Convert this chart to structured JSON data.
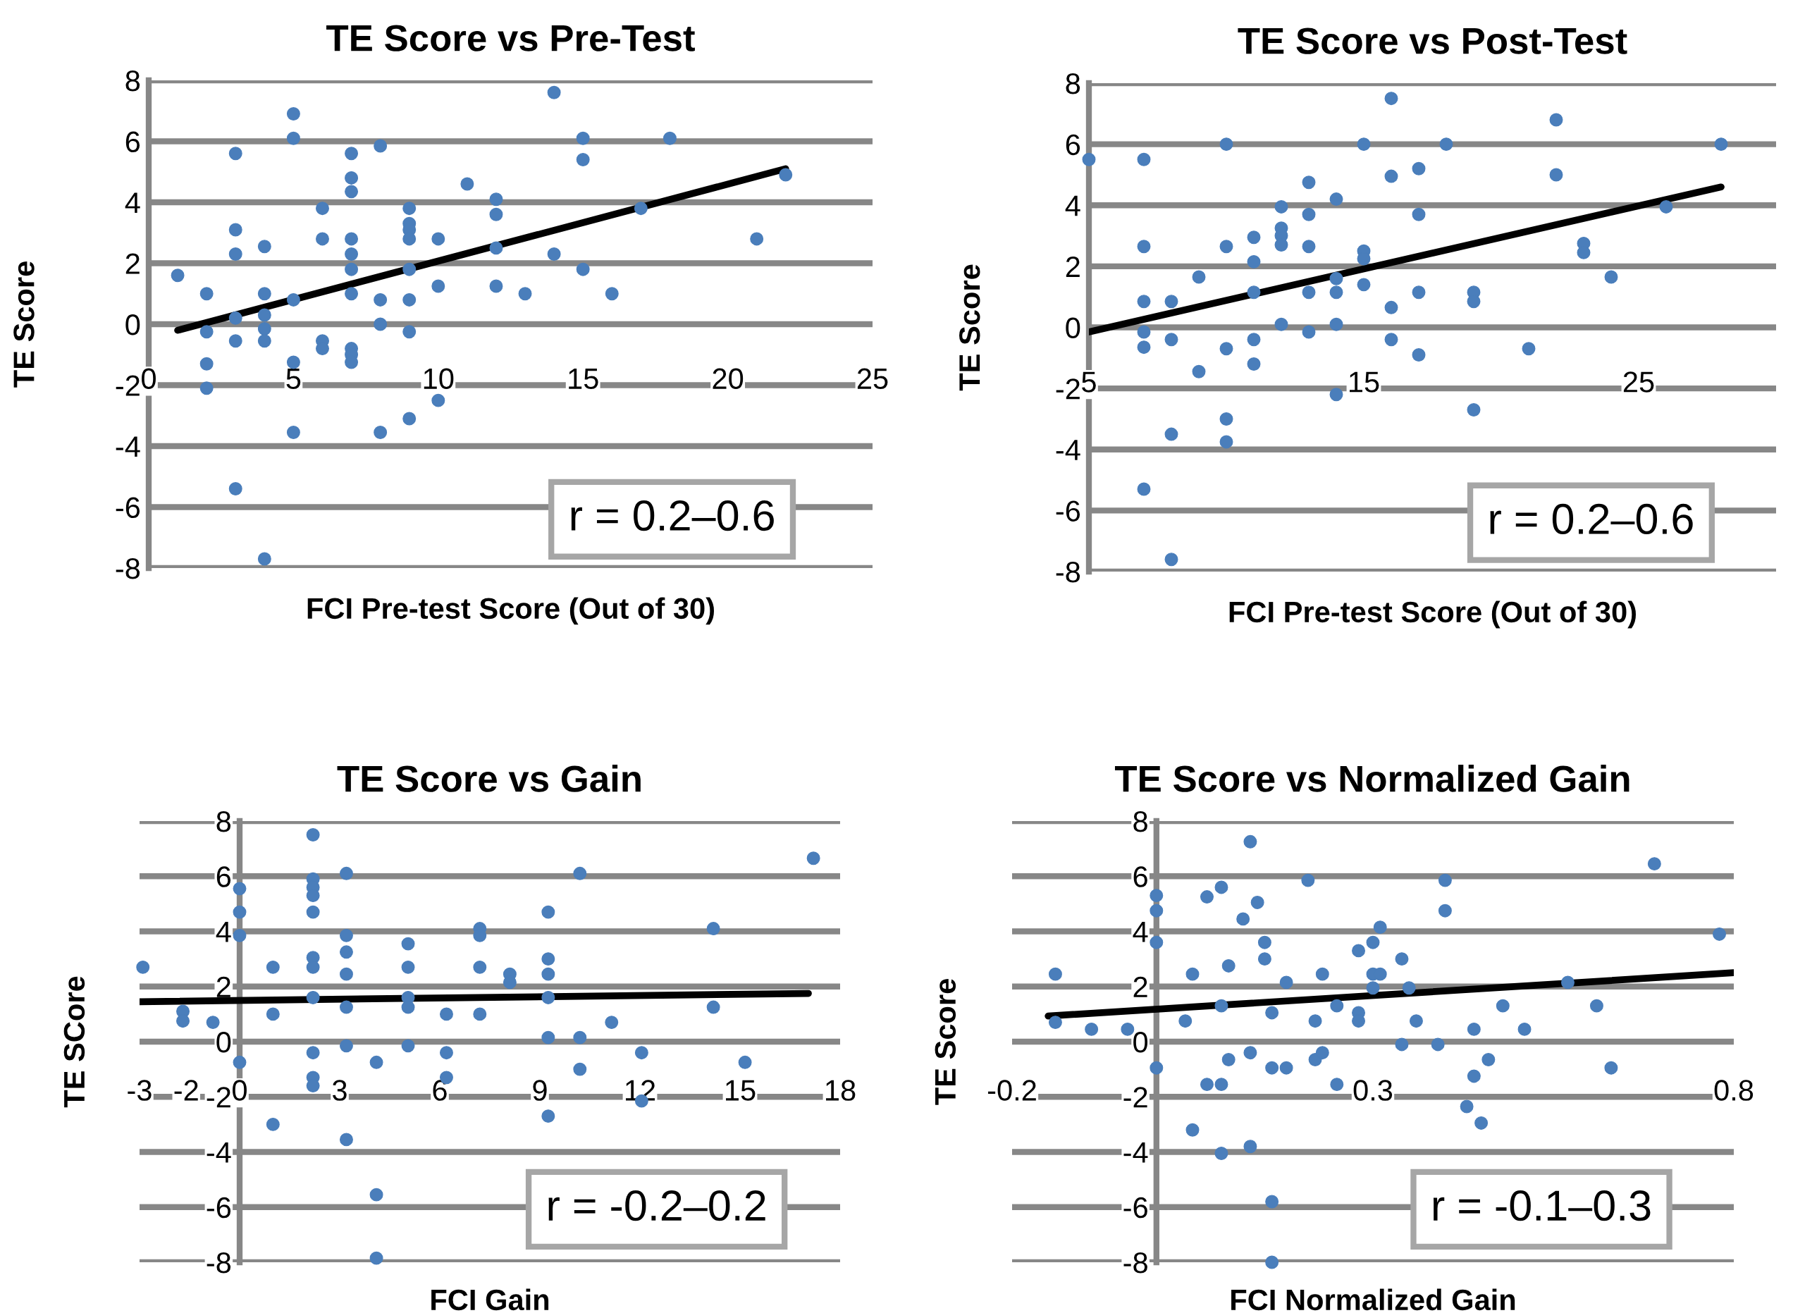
{
  "chart_data": [
    {
      "type": "scatter",
      "title": "TE Score vs Pre-Test",
      "xlabel": "FCI Pre-test Score (Out of 30)",
      "ylabel": "TE Score",
      "xlim": [
        0,
        25
      ],
      "xticks": [
        0,
        5,
        10,
        15,
        20,
        25
      ],
      "ylim": [
        -8,
        8
      ],
      "yticks": [
        -8,
        -6,
        -4,
        -2,
        0,
        2,
        4,
        6,
        8
      ],
      "grid": "y",
      "annotations": [
        "r = 0.2–0.6"
      ],
      "series": [
        {
          "type": "scatter",
          "color": "#4a7ebb",
          "x": [
            14,
            5,
            5,
            3,
            7,
            8,
            15,
            18,
            15,
            7,
            7,
            11,
            12,
            12,
            22,
            17,
            6,
            9,
            9,
            9,
            9,
            3,
            3,
            4,
            6,
            7,
            7,
            7,
            10,
            12,
            21,
            14,
            15,
            9,
            1,
            2,
            4,
            7,
            10,
            12,
            13,
            16,
            5,
            8,
            9,
            3,
            4,
            8,
            2,
            4,
            4,
            3,
            9,
            6,
            6,
            7,
            7,
            7,
            5,
            2,
            2,
            10,
            9,
            5,
            8,
            3,
            4
          ],
          "values": [
            7.6,
            6.9,
            6.1,
            5.6,
            5.6,
            5.85,
            6.1,
            6.1,
            5.4,
            4.8,
            4.35,
            4.6,
            4.1,
            3.6,
            4.9,
            3.8,
            3.8,
            3.8,
            3.3,
            3.1,
            2.8,
            3.1,
            2.3,
            2.55,
            2.8,
            2.8,
            2.3,
            1.8,
            2.8,
            2.5,
            2.8,
            2.3,
            1.8,
            1.8,
            1.6,
            1.0,
            1.0,
            1.0,
            1.25,
            1.25,
            1.0,
            1.0,
            0.8,
            0.8,
            0.8,
            0.2,
            0.3,
            0,
            -0.25,
            -0.15,
            -0.55,
            -0.55,
            -0.25,
            -0.55,
            -0.8,
            -0.8,
            -1.0,
            -1.25,
            -1.25,
            -1.3,
            -2.1,
            -2.5,
            -3.1,
            -3.55,
            -3.55,
            -5.4,
            -7.7
          ]
        },
        {
          "type": "line",
          "color": "#000000",
          "x": [
            1,
            22
          ],
          "values": [
            -0.2,
            5.1
          ]
        }
      ]
    },
    {
      "type": "scatter",
      "title": "TE Score vs Post-Test",
      "xlabel": "FCI Pre-test Score (Out of 30)",
      "ylabel": "TE Score",
      "xlim": [
        5,
        30
      ],
      "xticks": [
        5,
        15,
        25
      ],
      "ylim": [
        -8,
        8
      ],
      "yticks": [
        -8,
        -6,
        -4,
        -2,
        0,
        2,
        4,
        6,
        8
      ],
      "grid": "y",
      "annotations": [
        "r = 0.2–0.6"
      ],
      "series": [
        {
          "type": "scatter",
          "color": "#4a7ebb",
          "x": [
            5,
            7,
            10,
            15,
            16,
            18,
            22,
            28,
            16,
            17,
            22,
            13,
            14,
            12,
            13,
            17,
            26,
            12,
            12,
            12,
            11,
            10,
            7,
            13,
            15,
            15,
            23,
            23,
            11,
            9,
            24,
            14,
            15,
            11,
            13,
            14,
            17,
            19,
            19,
            7,
            8,
            16,
            12,
            14,
            13,
            7,
            7,
            8,
            11,
            16,
            10,
            21,
            17,
            11,
            9,
            14,
            19,
            10,
            8,
            10,
            7,
            8
          ],
          "values": [
            5.5,
            5.5,
            6.0,
            6.0,
            7.5,
            6.0,
            6.8,
            6.0,
            4.95,
            5.2,
            5.0,
            4.75,
            4.2,
            3.95,
            3.7,
            3.7,
            3.95,
            3.25,
            3.0,
            2.7,
            2.95,
            2.65,
            2.65,
            2.65,
            2.5,
            2.25,
            2.75,
            2.45,
            2.15,
            1.65,
            1.65,
            1.6,
            1.4,
            1.15,
            1.15,
            1.15,
            1.15,
            1.15,
            0.85,
            0.85,
            0.85,
            0.65,
            0.1,
            0.1,
            -0.15,
            -0.15,
            -0.65,
            -0.4,
            -0.4,
            -0.4,
            -0.7,
            -0.7,
            -0.9,
            -1.2,
            -1.45,
            -2.2,
            -2.7,
            -3.0,
            -3.5,
            -3.75,
            -5.3,
            -7.6
          ]
        },
        {
          "type": "line",
          "color": "#000000",
          "x": [
            5,
            28
          ],
          "values": [
            -0.15,
            4.6
          ]
        }
      ]
    },
    {
      "type": "scatter",
      "title": "TE Score vs Gain",
      "xlabel": "FCI Gain",
      "ylabel": "TE SCore",
      "xlim": [
        -3,
        18
      ],
      "xticks": [
        -3,
        {
          "value": -1.6,
          "label": "-2"
        },
        0,
        3,
        6,
        9,
        12,
        15,
        18
      ],
      "ylim": [
        -8,
        8
      ],
      "yticks": [
        -8,
        -6,
        -4,
        -2,
        0,
        2,
        4,
        6,
        8
      ],
      "grid": "y",
      "annotations": [
        "r = -0.2–0.2"
      ],
      "series": [
        {
          "type": "scatter",
          "color": "#4a7ebb",
          "x": [
            -2.9,
            -1.7,
            -1.7,
            -0.8,
            0,
            0,
            0,
            0,
            1,
            1,
            1,
            2.2,
            2.2,
            2.2,
            2.2,
            2.2,
            2.2,
            2.2,
            2.2,
            2.2,
            2.2,
            2.2,
            3.2,
            3.2,
            3.2,
            3.2,
            3.2,
            3.2,
            3.2,
            4.1,
            4.1,
            4.1,
            5.05,
            5.05,
            5.05,
            5.05,
            5.05,
            6.2,
            6.2,
            6.2,
            7.2,
            7.2,
            7.2,
            7.2,
            8.1,
            8.1,
            9.25,
            9.25,
            9.25,
            9.25,
            9.25,
            9.25,
            10.2,
            10.2,
            10.2,
            11.15,
            12.05,
            12.05,
            14.2,
            14.2,
            15.15,
            17.2
          ],
          "values": [
            2.7,
            1.1,
            0.75,
            0.7,
            5.55,
            4.7,
            3.85,
            -0.75,
            2.7,
            1.0,
            -3.0,
            7.5,
            5.9,
            5.6,
            5.3,
            4.7,
            3.05,
            2.7,
            1.6,
            -0.4,
            -1.3,
            -1.6,
            6.1,
            3.85,
            3.25,
            2.45,
            1.25,
            -0.15,
            -3.55,
            -0.75,
            -5.55,
            -7.85,
            3.55,
            2.7,
            1.6,
            1.25,
            -0.15,
            1.0,
            -0.4,
            -1.3,
            4.1,
            3.85,
            2.7,
            1.0,
            2.45,
            2.15,
            4.7,
            3.0,
            2.45,
            1.6,
            0.15,
            -2.7,
            6.1,
            0.15,
            -1.0,
            0.7,
            -0.4,
            -2.15,
            4.1,
            1.25,
            -0.75,
            6.65
          ]
        },
        {
          "type": "line",
          "color": "#000000",
          "x": [
            -3,
            17.05
          ],
          "values": [
            1.45,
            1.75
          ]
        }
      ]
    },
    {
      "type": "scatter",
      "title": "TE Score vs Normalized Gain",
      "xlabel": "FCI Normalized Gain",
      "ylabel": "TE Score",
      "xlim": [
        -0.2,
        0.8
      ],
      "xticks": [
        -0.2,
        0.3,
        0.8
      ],
      "ylim": [
        -8,
        8
      ],
      "yticks": [
        -8,
        -6,
        -4,
        -2,
        0,
        2,
        4,
        6,
        8
      ],
      "grid": "y",
      "annotations": [
        "r = -0.1–0.3"
      ],
      "series": [
        {
          "type": "scatter",
          "color": "#4a7ebb",
          "x": [
            -0.14,
            -0.14,
            -0.09,
            -0.04,
            0.0,
            0.0,
            0.0,
            0.0,
            0.05,
            0.04,
            0.05,
            0.07,
            0.09,
            0.07,
            0.09,
            0.09,
            0.09,
            0.1,
            0.12,
            0.13,
            0.13,
            0.1,
            0.13,
            0.14,
            0.15,
            0.15,
            0.16,
            0.16,
            0.16,
            0.16,
            0.18,
            0.18,
            0.21,
            0.22,
            0.22,
            0.23,
            0.23,
            0.25,
            0.25,
            0.28,
            0.28,
            0.28,
            0.3,
            0.3,
            0.3,
            0.31,
            0.31,
            0.34,
            0.35,
            0.36,
            0.34,
            0.39,
            0.4,
            0.4,
            0.44,
            0.44,
            0.46,
            0.43,
            0.45,
            0.48,
            0.51,
            0.57,
            0.61,
            0.63,
            0.69,
            0.78
          ],
          "values": [
            2.45,
            0.7,
            0.45,
            0.45,
            5.3,
            4.75,
            3.6,
            -0.95,
            2.45,
            0.75,
            -3.2,
            5.25,
            5.6,
            -1.55,
            -1.55,
            -4.05,
            1.3,
            2.75,
            4.45,
            7.25,
            -0.4,
            -0.65,
            -3.8,
            5.05,
            3.6,
            3.0,
            1.05,
            -0.95,
            -5.8,
            -8.0,
            2.15,
            -0.95,
            5.85,
            0.75,
            -0.65,
            2.45,
            -0.4,
            1.3,
            -1.55,
            3.3,
            1.05,
            0.75,
            3.6,
            2.45,
            1.95,
            4.15,
            2.45,
            3.0,
            1.95,
            0.75,
            -0.1,
            -0.1,
            5.85,
            4.75,
            0.45,
            -1.25,
            -0.65,
            -2.35,
            -2.95,
            1.3,
            0.45,
            2.15,
            1.3,
            -0.95,
            6.45,
            3.9
          ]
        },
        {
          "type": "line",
          "color": "#000000",
          "x": [
            -0.15,
            0.8
          ],
          "values": [
            0.93,
            2.5
          ]
        }
      ]
    }
  ]
}
